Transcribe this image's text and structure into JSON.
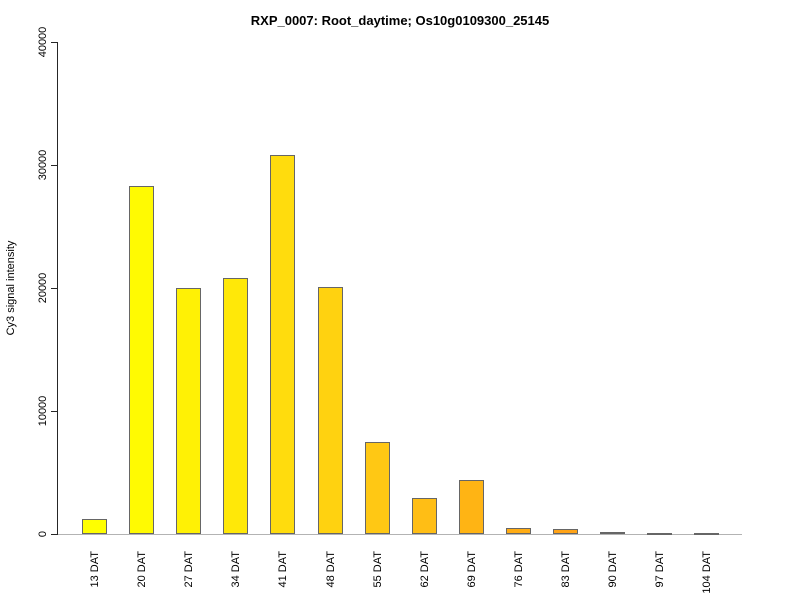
{
  "chart_data": {
    "type": "bar",
    "title": "RXP_0007: Root_daytime; Os10g0109300_25145",
    "xlabel": "",
    "ylabel": "Cy3 signal intensity",
    "categories": [
      "13 DAT",
      "20 DAT",
      "27 DAT",
      "34 DAT",
      "41 DAT",
      "48 DAT",
      "55 DAT",
      "62 DAT",
      "69 DAT",
      "76 DAT",
      "83 DAT",
      "90 DAT",
      "97 DAT",
      "104 DAT"
    ],
    "values": [
      1200,
      28300,
      20000,
      20800,
      30800,
      20100,
      7450,
      2900,
      4350,
      450,
      370,
      150,
      60,
      60
    ],
    "colors": [
      "#FFFF00",
      "#FFFA02",
      "#FFF105",
      "#FFE808",
      "#FFDC0D",
      "#FFD210",
      "#FFC814",
      "#FFBE15",
      "#FFB414",
      "#FFAC14",
      "#FFA317",
      "#FF9F15",
      "#FF9B13",
      "#FF9710"
    ],
    "bar_border_color": "#666666",
    "axis_color": "#262626",
    "baseline_color": "#b3b3b3",
    "ylim": [
      0,
      40000
    ],
    "yticks": [
      0,
      10000,
      20000,
      30000,
      40000
    ],
    "grid": false,
    "legend": "none"
  }
}
